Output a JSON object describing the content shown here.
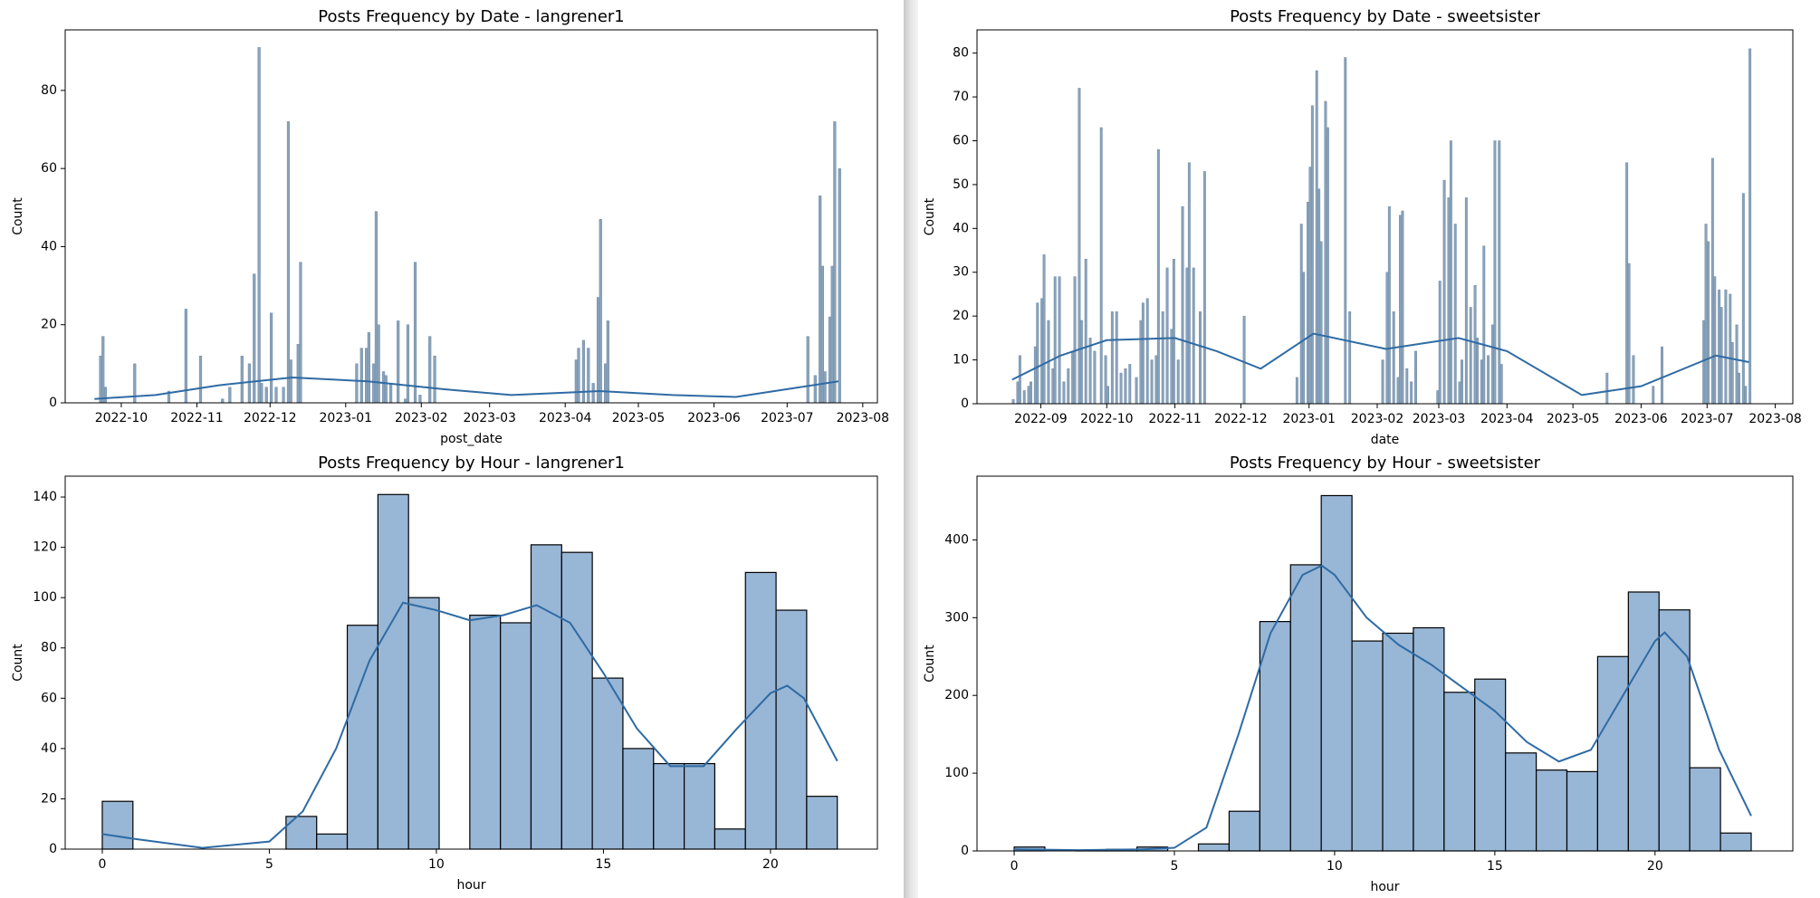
{
  "chart_data": [
    {
      "type": "bar",
      "title": "Posts Frequency by Date - langrener1",
      "xlabel": "post_date",
      "ylabel": "Count",
      "color": "#8aa3bb",
      "edgecolor": "#6f8aa5",
      "x": [
        "2022-09-22",
        "2022-09-23",
        "2022-09-24",
        "2022-10-06",
        "2022-10-20",
        "2022-10-27",
        "2022-11-02",
        "2022-11-11",
        "2022-11-14",
        "2022-11-19",
        "2022-11-22",
        "2022-11-24",
        "2022-11-26",
        "2022-11-27",
        "2022-11-29",
        "2022-12-01",
        "2022-12-03",
        "2022-12-06",
        "2022-12-08",
        "2022-12-09",
        "2022-12-12",
        "2022-12-13",
        "2023-01-05",
        "2023-01-07",
        "2023-01-09",
        "2023-01-10",
        "2023-01-12",
        "2023-01-13",
        "2023-01-14",
        "2023-01-16",
        "2023-01-17",
        "2023-01-19",
        "2023-01-22",
        "2023-01-25",
        "2023-01-26",
        "2023-01-29",
        "2023-01-31",
        "2023-02-04",
        "2023-02-06",
        "2023-04-05",
        "2023-04-06",
        "2023-04-08",
        "2023-04-10",
        "2023-04-12",
        "2023-04-14",
        "2023-04-15",
        "2023-04-17",
        "2023-04-18",
        "2023-07-09",
        "2023-07-12",
        "2023-07-14",
        "2023-07-15",
        "2023-07-16",
        "2023-07-18",
        "2023-07-19",
        "2023-07-20",
        "2023-07-22"
      ],
      "values": [
        12,
        17,
        4,
        10,
        3,
        24,
        12,
        1,
        4,
        12,
        10,
        33,
        91,
        5,
        4,
        23,
        4,
        4,
        72,
        11,
        15,
        36,
        10,
        14,
        14,
        18,
        10,
        49,
        20,
        8,
        7,
        5,
        21,
        1,
        20,
        36,
        2,
        17,
        12,
        11,
        14,
        16,
        14,
        5,
        27,
        47,
        10,
        21,
        17,
        7,
        53,
        35,
        8,
        22,
        35,
        72,
        60
      ],
      "kde_x": [
        "2022-09-20",
        "2022-10-15",
        "2022-11-10",
        "2022-12-10",
        "2023-01-10",
        "2023-02-10",
        "2023-03-10",
        "2023-04-15",
        "2023-05-15",
        "2023-06-10",
        "2023-07-01",
        "2023-07-22"
      ],
      "kde_values": [
        1,
        2,
        4.5,
        6.5,
        5.5,
        3.5,
        2,
        3,
        2,
        1.5,
        3.5,
        5.5
      ],
      "kde_color": "#2e6ba4",
      "xlim": [
        "2022-09-08",
        "2023-08-07"
      ],
      "ylim": [
        0,
        95.5
      ],
      "xticks": [
        {
          "value": "2022-10-01",
          "label": "2022-10"
        },
        {
          "value": "2022-11-01",
          "label": "2022-11"
        },
        {
          "value": "2022-12-01",
          "label": "2022-12"
        },
        {
          "value": "2023-01-01",
          "label": "2023-01"
        },
        {
          "value": "2023-02-01",
          "label": "2023-02"
        },
        {
          "value": "2023-03-01",
          "label": "2023-03"
        },
        {
          "value": "2023-04-01",
          "label": "2023-04"
        },
        {
          "value": "2023-05-01",
          "label": "2023-05"
        },
        {
          "value": "2023-06-01",
          "label": "2023-06"
        },
        {
          "value": "2023-07-01",
          "label": "2023-07"
        },
        {
          "value": "2023-08-01",
          "label": "2023-08"
        }
      ],
      "yticks": [
        0,
        20,
        40,
        60,
        80
      ]
    },
    {
      "type": "bar",
      "title": "Posts Frequency by Date - sweetsister",
      "xlabel": "date",
      "ylabel": "Count",
      "color": "#8aa3bb",
      "edgecolor": "#6f8aa5",
      "x": [
        "2022-08-19",
        "2022-08-21",
        "2022-08-22",
        "2022-08-24",
        "2022-08-26",
        "2022-08-27",
        "2022-08-29",
        "2022-08-30",
        "2022-09-01",
        "2022-09-02",
        "2022-09-04",
        "2022-09-06",
        "2022-09-07",
        "2022-09-09",
        "2022-09-11",
        "2022-09-13",
        "2022-09-15",
        "2022-09-16",
        "2022-09-18",
        "2022-09-19",
        "2022-09-21",
        "2022-09-23",
        "2022-09-25",
        "2022-09-28",
        "2022-09-30",
        "2022-10-01",
        "2022-10-03",
        "2022-10-05",
        "2022-10-07",
        "2022-10-09",
        "2022-10-11",
        "2022-10-14",
        "2022-10-16",
        "2022-10-17",
        "2022-10-19",
        "2022-10-21",
        "2022-10-23",
        "2022-10-24",
        "2022-10-26",
        "2022-10-28",
        "2022-10-30",
        "2022-10-31",
        "2022-11-02",
        "2022-11-04",
        "2022-11-06",
        "2022-11-07",
        "2022-11-09",
        "2022-11-12",
        "2022-11-14",
        "2022-12-02",
        "2022-12-26",
        "2022-12-28",
        "2022-12-29",
        "2022-12-31",
        "2023-01-01",
        "2023-01-02",
        "2023-01-04",
        "2023-01-05",
        "2023-01-06",
        "2023-01-08",
        "2023-01-09",
        "2023-01-17",
        "2023-01-19",
        "2023-02-03",
        "2023-02-05",
        "2023-02-06",
        "2023-02-08",
        "2023-02-10",
        "2023-02-11",
        "2023-02-12",
        "2023-02-14",
        "2023-02-16",
        "2023-02-18",
        "2023-02-28",
        "2023-03-01",
        "2023-03-03",
        "2023-03-05",
        "2023-03-06",
        "2023-03-08",
        "2023-03-10",
        "2023-03-11",
        "2023-03-13",
        "2023-03-15",
        "2023-03-17",
        "2023-03-18",
        "2023-03-20",
        "2023-03-21",
        "2023-03-23",
        "2023-03-25",
        "2023-03-26",
        "2023-03-28",
        "2023-03-29",
        "2023-05-16",
        "2023-05-25",
        "2023-05-26",
        "2023-05-28",
        "2023-06-06",
        "2023-06-10",
        "2023-06-29",
        "2023-06-30",
        "2023-07-01",
        "2023-07-03",
        "2023-07-04",
        "2023-07-06",
        "2023-07-07",
        "2023-07-09",
        "2023-07-11",
        "2023-07-12",
        "2023-07-14",
        "2023-07-15",
        "2023-07-17",
        "2023-07-18",
        "2023-07-20"
      ],
      "values": [
        1,
        5,
        11,
        3,
        4,
        5,
        13,
        23,
        24,
        34,
        19,
        8,
        29,
        29,
        5,
        8,
        12,
        29,
        72,
        19,
        33,
        15,
        12,
        63,
        11,
        4,
        21,
        21,
        7,
        8,
        9,
        6,
        19,
        23,
        24,
        10,
        11,
        58,
        21,
        31,
        17,
        33,
        10,
        45,
        31,
        55,
        31,
        21,
        53,
        20,
        6,
        41,
        30,
        46,
        54,
        68,
        76,
        49,
        37,
        69,
        63,
        79,
        21,
        10,
        30,
        45,
        21,
        6,
        43,
        44,
        8,
        5,
        12,
        3,
        28,
        51,
        47,
        60,
        41,
        5,
        10,
        47,
        22,
        27,
        15,
        10,
        36,
        11,
        18,
        60,
        60,
        9,
        7,
        55,
        32,
        11,
        4,
        13,
        19,
        41,
        37,
        56,
        29,
        26,
        22,
        26,
        25,
        14,
        18,
        7,
        48,
        4,
        81
      ],
      "kde_x": [
        "2022-08-19",
        "2022-09-10",
        "2022-10-01",
        "2022-11-01",
        "2022-11-20",
        "2022-12-10",
        "2023-01-03",
        "2023-02-05",
        "2023-03-10",
        "2023-04-01",
        "2023-05-05",
        "2023-06-01",
        "2023-07-05",
        "2023-07-20"
      ],
      "kde_values": [
        5.5,
        11,
        14.5,
        15,
        12,
        8,
        16,
        12.5,
        15,
        12,
        2,
        4,
        11,
        9.5
      ],
      "kde_color": "#2e6ba4",
      "xlim": [
        "2022-08-03",
        "2023-08-09"
      ],
      "ylim": [
        0,
        85.3
      ],
      "xticks": [
        {
          "value": "2022-09-01",
          "label": "2022-09"
        },
        {
          "value": "2022-10-01",
          "label": "2022-10"
        },
        {
          "value": "2022-11-01",
          "label": "2022-11"
        },
        {
          "value": "2022-12-01",
          "label": "2022-12"
        },
        {
          "value": "2023-01-01",
          "label": "2023-01"
        },
        {
          "value": "2023-02-01",
          "label": "2023-02"
        },
        {
          "value": "2023-03-01",
          "label": "2023-03"
        },
        {
          "value": "2023-04-01",
          "label": "2023-04"
        },
        {
          "value": "2023-05-01",
          "label": "2023-05"
        },
        {
          "value": "2023-06-01",
          "label": "2023-06"
        },
        {
          "value": "2023-07-01",
          "label": "2023-07"
        },
        {
          "value": "2023-08-01",
          "label": "2023-08"
        }
      ],
      "yticks": [
        0,
        10,
        20,
        30,
        40,
        50,
        60,
        70,
        80
      ]
    },
    {
      "type": "histogram",
      "title": "Posts Frequency by Hour - langrener1",
      "xlabel": "hour",
      "ylabel": "Count",
      "color": "#98b6d6",
      "edgecolor": "#000000",
      "bins": [
        0,
        0.917,
        1.833,
        2.75,
        3.667,
        4.583,
        5.5,
        6.417,
        7.333,
        8.25,
        9.167,
        10.083,
        11,
        11.917,
        12.833,
        13.75,
        14.667,
        15.583,
        16.5,
        17.417,
        18.333,
        19.25,
        20.167,
        21.083,
        22
      ],
      "values": [
        19,
        0,
        0,
        0,
        0,
        0,
        13,
        6,
        89,
        141,
        100,
        0,
        93,
        90,
        121,
        118,
        68,
        40,
        34,
        34,
        8,
        110,
        95,
        21
      ],
      "kde_x": [
        0,
        1,
        3,
        5,
        6,
        7,
        8,
        9,
        10,
        11,
        12,
        13,
        14,
        15,
        16,
        17,
        18,
        19,
        20,
        20.5,
        21,
        22
      ],
      "kde_values": [
        6,
        4,
        0.5,
        3,
        15,
        40,
        75,
        98,
        95,
        91,
        93,
        97,
        90,
        70,
        48,
        33,
        33,
        48,
        62,
        65,
        60,
        35
      ],
      "kde_color": "#2e6ba4",
      "xlim": [
        -1.11,
        23.2
      ],
      "ylim": [
        0,
        148.3
      ],
      "xticks": [
        0,
        5,
        10,
        15,
        20
      ],
      "yticks": [
        0,
        20,
        40,
        60,
        80,
        100,
        120,
        140
      ]
    },
    {
      "type": "histogram",
      "title": "Posts Frequency by Hour - sweetsister",
      "xlabel": "hour",
      "ylabel": "Count",
      "color": "#98b6d6",
      "edgecolor": "#000000",
      "bins": [
        0,
        0.958,
        1.917,
        2.875,
        3.833,
        4.792,
        5.75,
        6.708,
        7.667,
        8.625,
        9.583,
        10.542,
        11.5,
        12.458,
        13.417,
        14.375,
        15.333,
        16.292,
        17.25,
        18.208,
        19.167,
        20.125,
        21.083,
        22.042,
        23
      ],
      "values": [
        5,
        0,
        1,
        2,
        5,
        0,
        9,
        51,
        295,
        368,
        457,
        270,
        280,
        287,
        204,
        221,
        126,
        104,
        102,
        250,
        333,
        310,
        107,
        23
      ],
      "kde_x": [
        0,
        2,
        4,
        5,
        6,
        7,
        8,
        9,
        9.6,
        10,
        11,
        12,
        13,
        14,
        15,
        16,
        17,
        18,
        19,
        20,
        20.3,
        21,
        22,
        23
      ],
      "kde_values": [
        2,
        1,
        2,
        4,
        30,
        150,
        280,
        355,
        367,
        355,
        300,
        265,
        240,
        210,
        180,
        140,
        115,
        130,
        200,
        270,
        281,
        250,
        130,
        45
      ],
      "kde_color": "#2e6ba4",
      "xlim": [
        -1.16,
        24.3
      ],
      "ylim": [
        0,
        482
      ],
      "xticks": [
        0,
        5,
        10,
        15,
        20
      ],
      "yticks": [
        0,
        100,
        200,
        300,
        400
      ]
    }
  ]
}
